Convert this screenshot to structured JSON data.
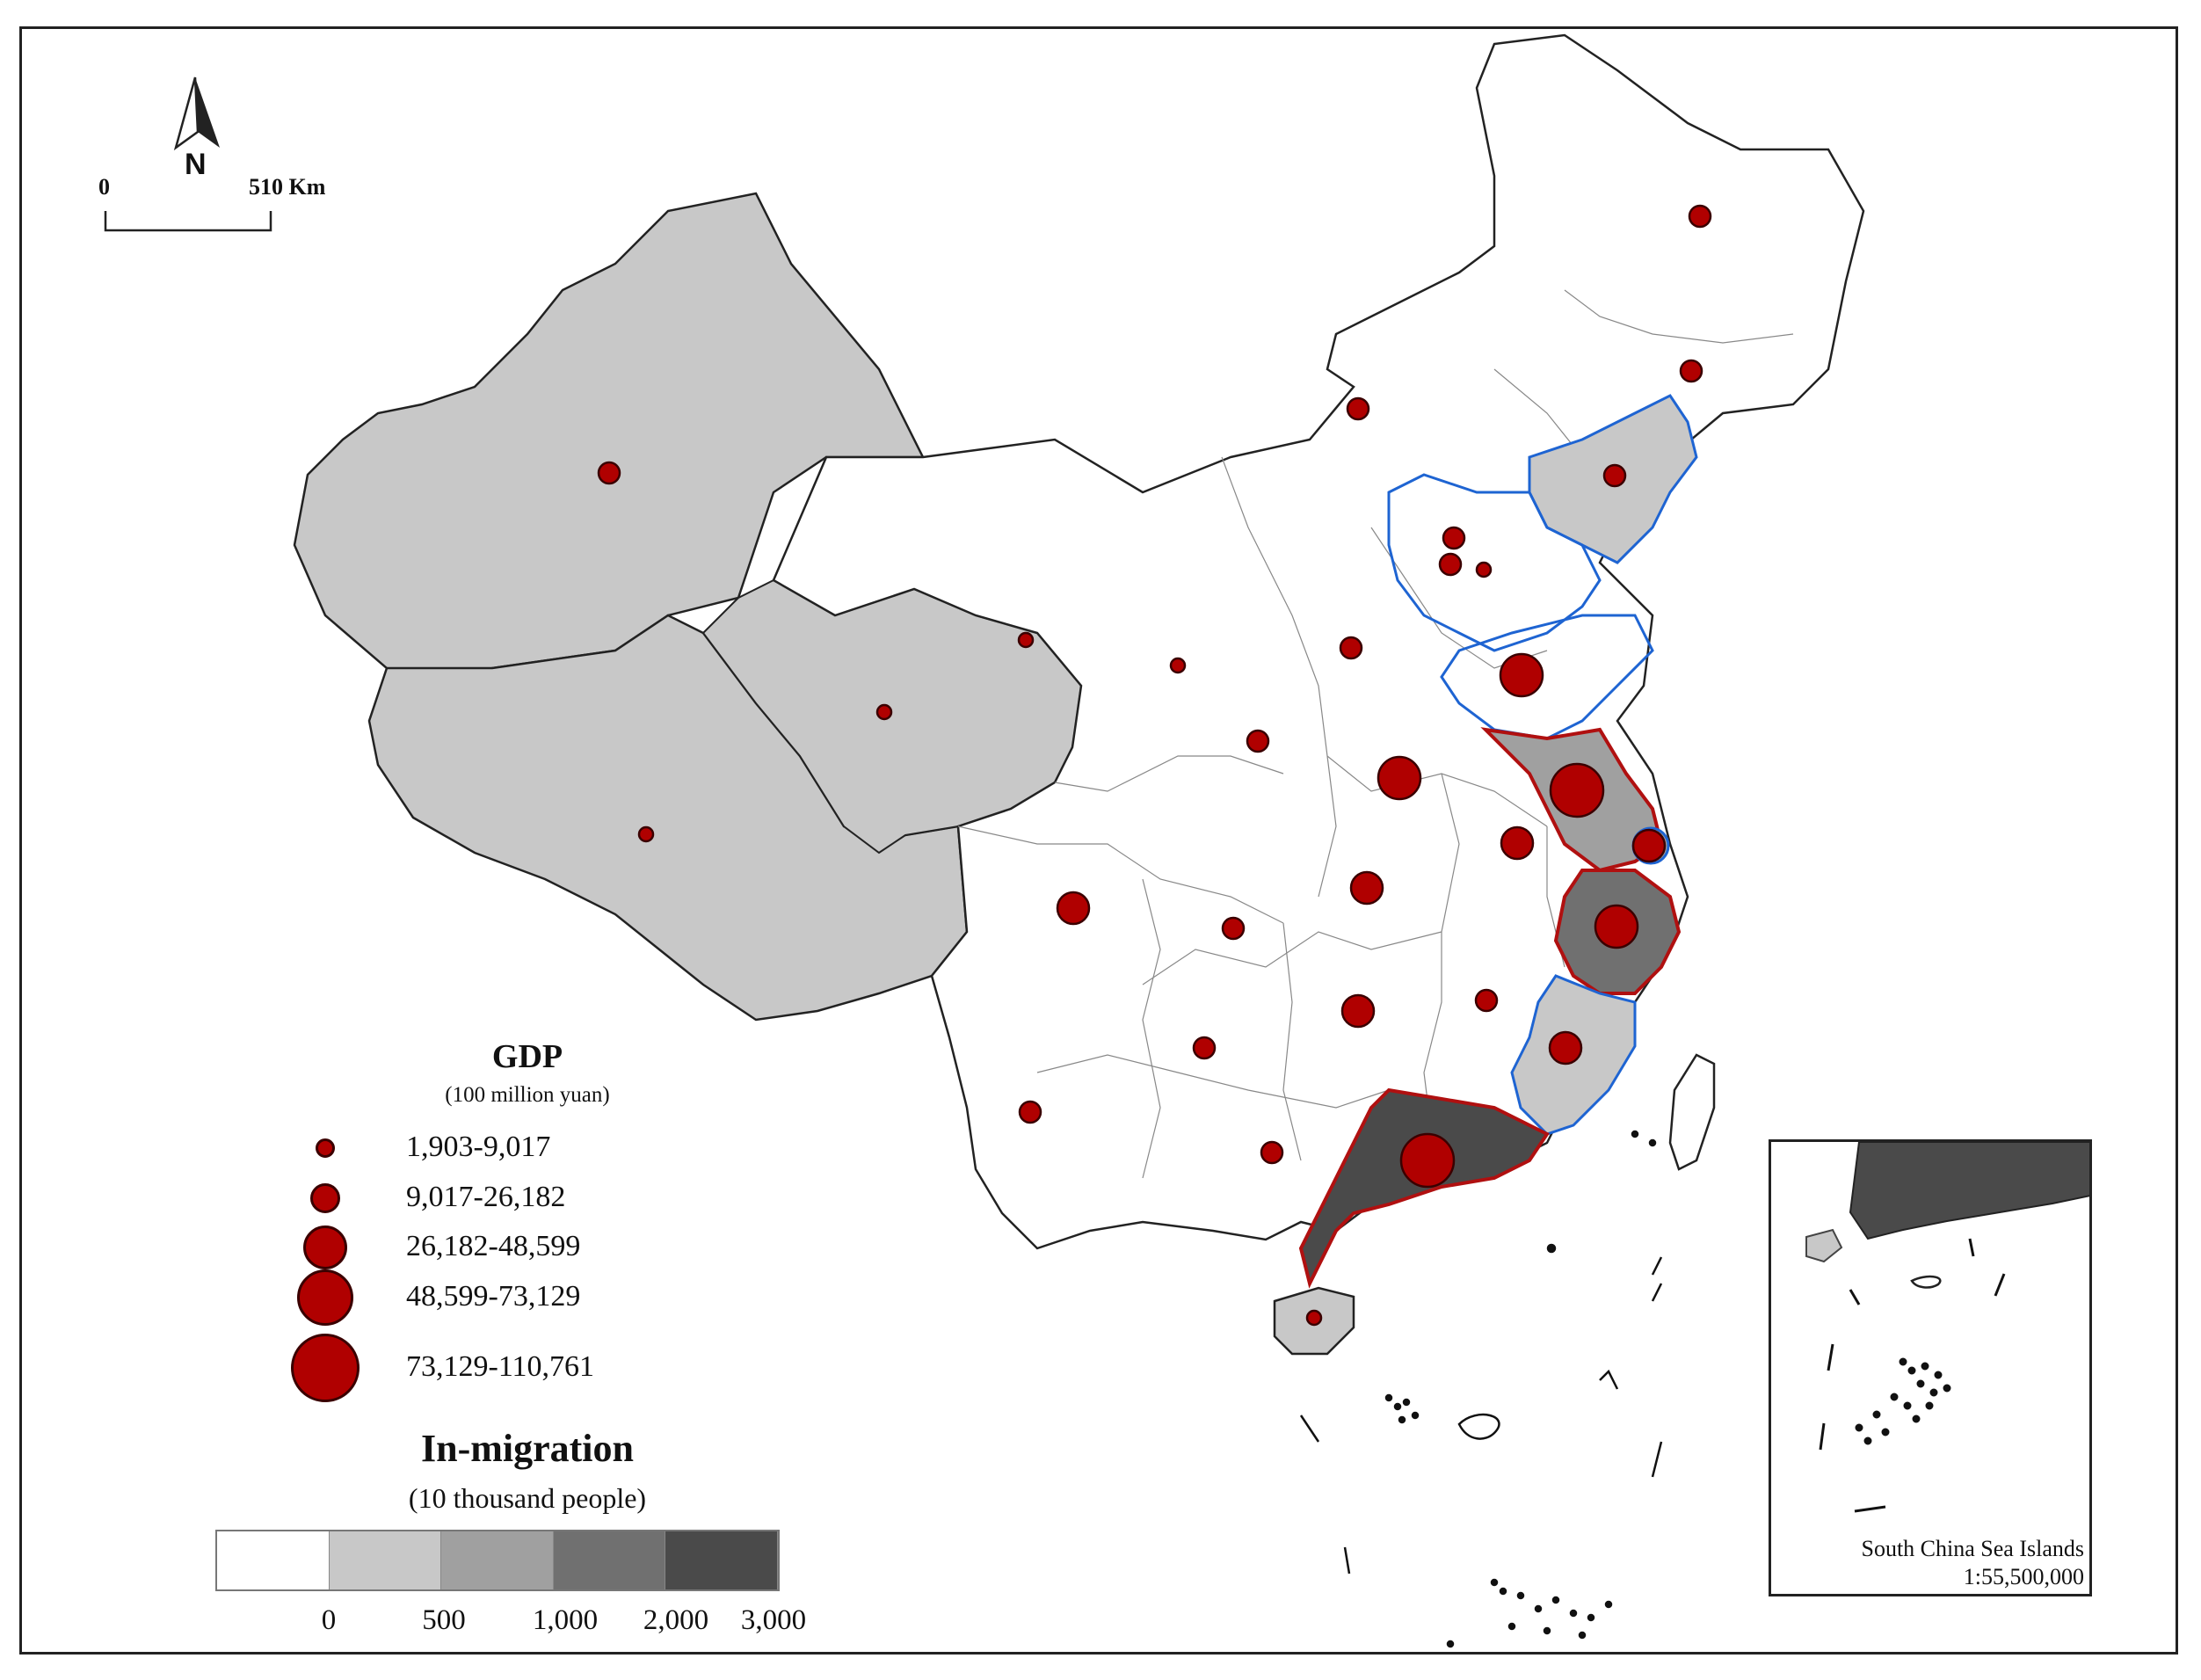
{
  "north_arrow": {
    "label": "N"
  },
  "scale_bar": {
    "start": "0",
    "end": "510 Km"
  },
  "gdp_legend": {
    "title": "GDP",
    "unit": "(100 million yuan)",
    "classes": [
      {
        "label": "1,903-9,017"
      },
      {
        "label": "9,017-26,182"
      },
      {
        "label": "26,182-48,599"
      },
      {
        "label": "48,599-73,129"
      },
      {
        "label": "73,129-110,761"
      }
    ],
    "symbol_color": "#b00000"
  },
  "inmigration_legend": {
    "title": "In-migration",
    "unit": "(10 thousand people)",
    "ramp_colors": [
      "#ffffff",
      "#c8c8c8",
      "#a0a0a0",
      "#707070",
      "#4a4a4a"
    ],
    "ticks": [
      "0",
      "500",
      "1,000",
      "2,000",
      "3,000"
    ]
  },
  "outline_colors": {
    "red_region": "#b01010",
    "blue_region": "#1e64d2"
  },
  "inset": {
    "title": "South China Sea Islands",
    "scale": "1:55,500,000"
  }
}
